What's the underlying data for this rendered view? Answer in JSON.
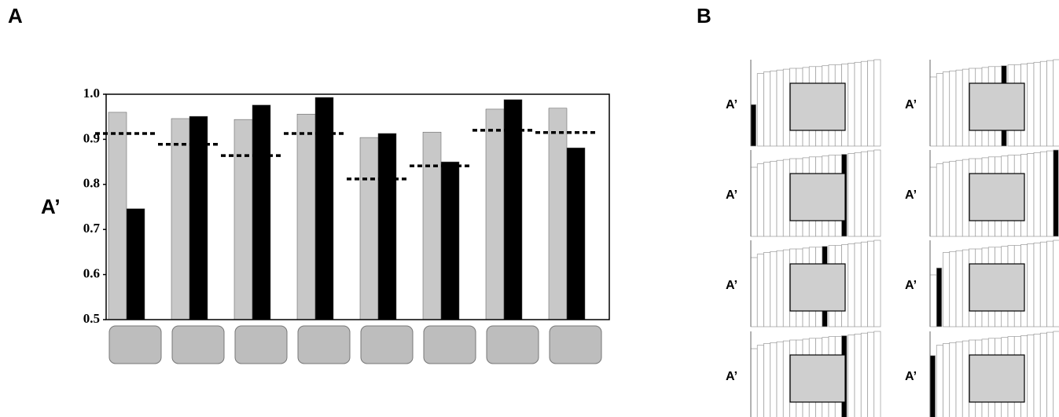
{
  "chart_data": [
    {
      "type": "grouped-bar-threshold",
      "panel_label": "A",
      "y_label": "A’",
      "categories": [
        null,
        null,
        null,
        null,
        null,
        null,
        null,
        null
      ],
      "series": [
        {
          "color": "#c8c8c8",
          "values": [
            0.96,
            0.946,
            0.944,
            0.956,
            0.904,
            0.916,
            0.967,
            0.969
          ]
        },
        {
          "color": "#000000",
          "values": [
            0.746,
            0.951,
            0.976,
            0.993,
            0.913,
            0.85,
            0.988,
            0.881
          ]
        }
      ],
      "threshold": {
        "color": "#000000",
        "values": [
          0.913,
          0.889,
          0.864,
          0.913,
          0.812,
          0.841,
          0.92,
          0.915
        ]
      },
      "ylim": [
        0.5,
        1.0
      ],
      "yticks": [
        0.5,
        0.6,
        0.7,
        0.8,
        0.9,
        {
          "value": 1,
          "label": "1.0"
        }
      ]
    },
    {
      "type": "rank-panels",
      "panel_label": "B",
      "ylim": [
        0,
        1
      ],
      "highlight_color": "#000000",
      "panels": [
        {
          "label": "A’",
          "highlight": 0,
          "values": [
            0.48,
            0.84,
            0.86,
            0.87,
            0.88,
            0.89,
            0.9,
            0.9,
            0.91,
            0.92,
            0.92,
            0.93,
            0.94,
            0.94,
            0.95,
            0.96,
            0.97,
            0.98,
            0.99,
            1.0
          ]
        },
        {
          "label": "A’",
          "highlight": 11,
          "values": [
            0.8,
            0.84,
            0.86,
            0.87,
            0.88,
            0.89,
            0.9,
            0.9,
            0.91,
            0.92,
            0.92,
            0.93,
            0.94,
            0.94,
            0.95,
            0.96,
            0.97,
            0.98,
            0.99,
            1.0
          ]
        },
        {
          "label": "A’",
          "highlight": 14,
          "values": [
            0.8,
            0.84,
            0.86,
            0.87,
            0.88,
            0.89,
            0.9,
            0.9,
            0.91,
            0.92,
            0.92,
            0.93,
            0.94,
            0.94,
            0.95,
            0.96,
            0.97,
            0.98,
            0.99,
            1.0
          ]
        },
        {
          "label": "A’",
          "highlight": 19,
          "values": [
            0.8,
            0.84,
            0.86,
            0.87,
            0.88,
            0.89,
            0.9,
            0.9,
            0.91,
            0.92,
            0.92,
            0.93,
            0.94,
            0.94,
            0.95,
            0.96,
            0.97,
            0.98,
            0.99,
            1.0
          ]
        },
        {
          "label": "A’",
          "highlight": 11,
          "values": [
            0.8,
            0.84,
            0.86,
            0.87,
            0.88,
            0.89,
            0.9,
            0.9,
            0.91,
            0.92,
            0.92,
            0.93,
            0.94,
            0.94,
            0.95,
            0.96,
            0.97,
            0.98,
            0.99,
            1.0
          ]
        },
        {
          "label": "A’",
          "highlight": 1,
          "values": [
            0.6,
            0.68,
            0.86,
            0.87,
            0.88,
            0.89,
            0.9,
            0.9,
            0.91,
            0.92,
            0.92,
            0.93,
            0.94,
            0.94,
            0.95,
            0.96,
            0.97,
            0.98,
            0.99,
            1.0
          ]
        },
        {
          "label": "A’",
          "highlight": 14,
          "values": [
            0.8,
            0.84,
            0.86,
            0.87,
            0.88,
            0.89,
            0.9,
            0.9,
            0.91,
            0.92,
            0.92,
            0.93,
            0.94,
            0.94,
            0.95,
            0.96,
            0.97,
            0.98,
            0.99,
            1.0
          ]
        },
        {
          "label": "A’",
          "highlight": 0,
          "values": [
            0.72,
            0.84,
            0.86,
            0.87,
            0.88,
            0.89,
            0.9,
            0.9,
            0.91,
            0.92,
            0.92,
            0.93,
            0.94,
            0.94,
            0.95,
            0.96,
            0.97,
            0.98,
            0.99,
            1.0
          ]
        }
      ]
    }
  ]
}
